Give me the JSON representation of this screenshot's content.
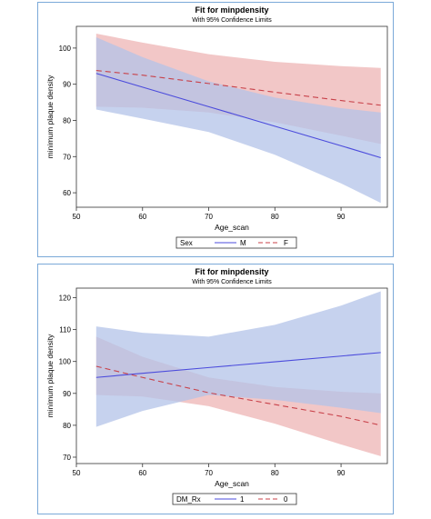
{
  "colors": {
    "blue_line": "#4b4bdc",
    "blue_band": "#b3c3e8",
    "red_line": "#c8424a",
    "red_band": "#eeb4b4",
    "frame": "#7aa9d8"
  },
  "chart_data": [
    {
      "type": "line",
      "title": "Fit for minpdensity",
      "subtitle": "With 95% Confidence Limits",
      "xlabel": "Age_scan",
      "ylabel": "minimum plaque density",
      "xlim": [
        50,
        97
      ],
      "ylim": [
        56,
        106
      ],
      "xticks": [
        50,
        60,
        70,
        80,
        90
      ],
      "yticks": [
        60,
        70,
        80,
        90,
        100
      ],
      "legend": {
        "title": "Sex",
        "placement": "bottom"
      },
      "series": [
        {
          "name": "M",
          "color": "blue",
          "style": "solid",
          "x": [
            53,
            60,
            70,
            80,
            90,
            96
          ],
          "fit": [
            93,
            89.2,
            83.8,
            78.4,
            73.0,
            69.7
          ],
          "lower": [
            83,
            80.5,
            76.8,
            70.5,
            62.6,
            57.2
          ],
          "upper": [
            103,
            97.5,
            90.8,
            86.3,
            83.4,
            82.2
          ]
        },
        {
          "name": "F",
          "color": "red",
          "style": "dashed",
          "x": [
            53,
            60,
            70,
            80,
            90,
            96
          ],
          "fit": [
            93.8,
            92.5,
            90.2,
            87.8,
            85.5,
            84.2
          ],
          "lower": [
            83.8,
            83.5,
            82.2,
            79.5,
            75.8,
            73.5
          ],
          "upper": [
            104,
            101.5,
            98.3,
            96.2,
            95.0,
            94.5
          ]
        }
      ]
    },
    {
      "type": "line",
      "title": "Fit for minpdensity",
      "subtitle": "With 95% Confidence Limits",
      "xlabel": "Age_scan",
      "ylabel": "minimum plaque density",
      "xlim": [
        50,
        97
      ],
      "ylim": [
        68,
        123
      ],
      "xticks": [
        50,
        60,
        70,
        80,
        90
      ],
      "yticks": [
        70,
        80,
        90,
        100,
        110,
        120
      ],
      "legend": {
        "title": "DM_Rx",
        "placement": "bottom"
      },
      "series": [
        {
          "name": "1",
          "color": "blue",
          "style": "solid",
          "x": [
            53,
            60,
            70,
            80,
            90,
            96
          ],
          "fit": [
            95,
            96.3,
            98.1,
            99.9,
            101.7,
            102.8
          ],
          "lower": [
            79.5,
            84.5,
            89.5,
            88.0,
            85.5,
            83.8
          ],
          "upper": [
            111,
            109.0,
            107.8,
            111.5,
            117.5,
            122.0
          ]
        },
        {
          "name": "0",
          "color": "red",
          "style": "dashed",
          "x": [
            53,
            60,
            70,
            80,
            90,
            96
          ],
          "fit": [
            98.5,
            95.0,
            90.2,
            86.5,
            82.8,
            80.0
          ],
          "lower": [
            89.5,
            89.0,
            86.0,
            80.5,
            74.0,
            70.3
          ],
          "upper": [
            107.8,
            101.5,
            95.0,
            92.0,
            90.5,
            90.0
          ]
        }
      ]
    }
  ]
}
